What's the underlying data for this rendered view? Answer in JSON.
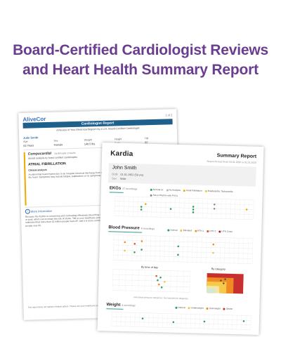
{
  "headline": {
    "line1": "Board-Certified Cardiologist Reviews",
    "line2": "and Heart Health Summary Report"
  },
  "colors": {
    "headline": "#6a3d8f",
    "alivecor_blue": "#1f5f8b",
    "kardia_teal": "#2f9e8f",
    "normal_green": "#2e9e5b",
    "afib_orange": "#f0a800",
    "bp_red": "#c8302f"
  },
  "back_report": {
    "logo": "AliveCor",
    "page_num": "1 of 2",
    "banner": "Cardiologist Report",
    "banner_sub": "A Review of Your Electrocardiogram by a U.S. Board-Certified Cardiologist",
    "patient_name": "Julie Smith",
    "fields": [
      {
        "label": "Age",
        "value": "62 Years"
      },
      {
        "label": "Sex",
        "value": "Female"
      },
      {
        "label": "Weight",
        "value": "140.5 lbs"
      },
      {
        "label": "Height",
        "value": "5' 6\""
      },
      {
        "label": "HR",
        "value": "87"
      }
    ],
    "consult_brand": "Compucardial",
    "consult_brand_sub": "cardiologist consults",
    "consult_small": "clinical analysis by board certified cardiologists",
    "finding": "ATRIAL FIBRILLATION",
    "clinical_label": "Clinical analysis",
    "clinical_text": "An abnormal heart rhythm due to an irregular electrical discharge from the atria of the heart. Symptoms may include fatigue, palpitations or no symptoms at all.",
    "more_info_icon": "info-icon",
    "more_info": "More Information",
    "more_text": "Because the rhythm is concerning and not beating effectively, blood flow may slow or pool, which can increase the risk of stroke. Talk to your healthcare provider. It is estimated that more than 10 million people have AF, and it is more common in people over 65.",
    "footer": "This report does not replace medical advice. Please see your healthcare provider for questions about your results."
  },
  "front_report": {
    "logo": "Kardia",
    "title": "Summary Report",
    "subtitle": "Report Period: From 03.01.2020 to 31.01.2020",
    "patient": {
      "name": "John Smith",
      "dob_label": "DOB",
      "dob": "01.01.1952 (59 yrs)",
      "sex_label": "Sex",
      "sex": "Male"
    },
    "ekg": {
      "title": "EKGs",
      "count": "47 recordings",
      "legend": [
        {
          "label": "Normal ex",
          "color": "#2e9e5b"
        },
        {
          "label": "No Analysis",
          "color": "#bbbbbb"
        },
        {
          "label": "Atrial Fibrillation",
          "color": "#f0a800"
        },
        {
          "label": "Bradycardia, Tachycardia",
          "color": "#e8c84a"
        },
        {
          "label": "Sinus Rhythm with PVCs",
          "color": "#8a8a8a"
        }
      ]
    },
    "blood_pressure": {
      "title": "Blood Pressure",
      "count": "9 recordings",
      "legend": [
        {
          "label": "Normal",
          "color": "#2e9e5b"
        },
        {
          "label": "Elevated",
          "color": "#e8c84a"
        },
        {
          "label": "HTN 1",
          "color": "#f08a24"
        },
        {
          "label": "HTN 2",
          "color": "#d9532b"
        },
        {
          "label": "HTN Crisis",
          "color": "#a8201a"
        }
      ],
      "by_time_title": "By time of day",
      "by_category_title": "By category",
      "note": "AHA blood pressure categories. Not intended for diagnosis."
    },
    "weight": {
      "title": "Weight",
      "count": "4 recordings",
      "legend": [
        {
          "label": "Normal",
          "color": "#2e9e5b"
        },
        {
          "label": "Underweight",
          "color": "#e8c84a"
        },
        {
          "label": "Overweight",
          "color": "#f08a24"
        },
        {
          "label": "Obese",
          "color": "#c8302f"
        }
      ]
    }
  }
}
